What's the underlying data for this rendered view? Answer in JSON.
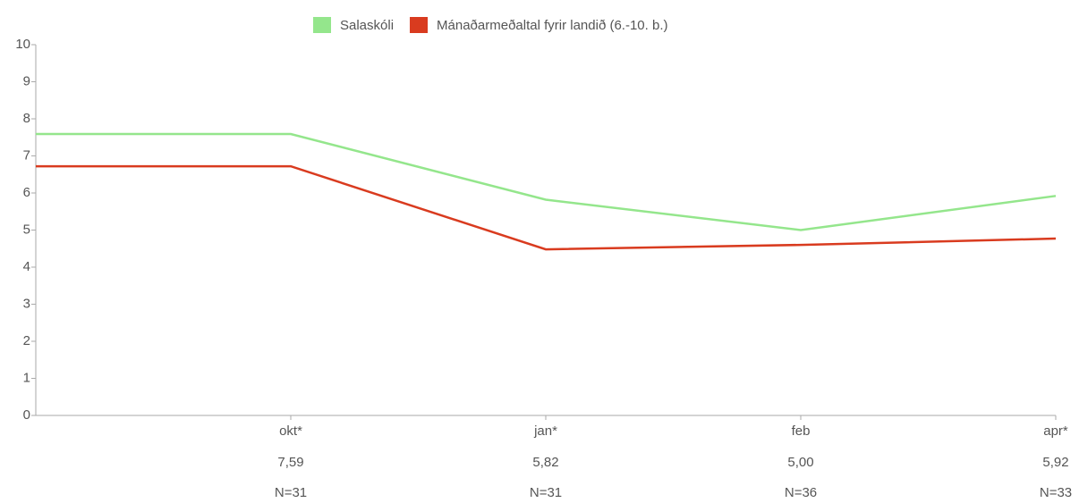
{
  "chart_data": {
    "type": "line",
    "categories": [
      null,
      "okt*",
      "jan*",
      "feb",
      "apr*"
    ],
    "series": [
      {
        "name": "Salaskóli",
        "color": "#94e68c",
        "values": [
          7.59,
          7.59,
          5.82,
          5.0,
          5.92
        ],
        "value_labels": [
          null,
          "7,59",
          "5,82",
          "5,00",
          "5,92"
        ]
      },
      {
        "name": "Mánaðarmeðaltal fyrir landið (6.-10. b.)",
        "color": "#d93b1f",
        "values": [
          6.72,
          6.72,
          4.48,
          4.6,
          4.77
        ]
      }
    ],
    "sample_sizes": [
      null,
      "N=31",
      "N=31",
      "N=36",
      "N=33"
    ],
    "ylim": [
      0,
      10
    ],
    "yticks": [
      0,
      1,
      2,
      3,
      4,
      5,
      6,
      7,
      8,
      9,
      10
    ],
    "legend": "top"
  }
}
